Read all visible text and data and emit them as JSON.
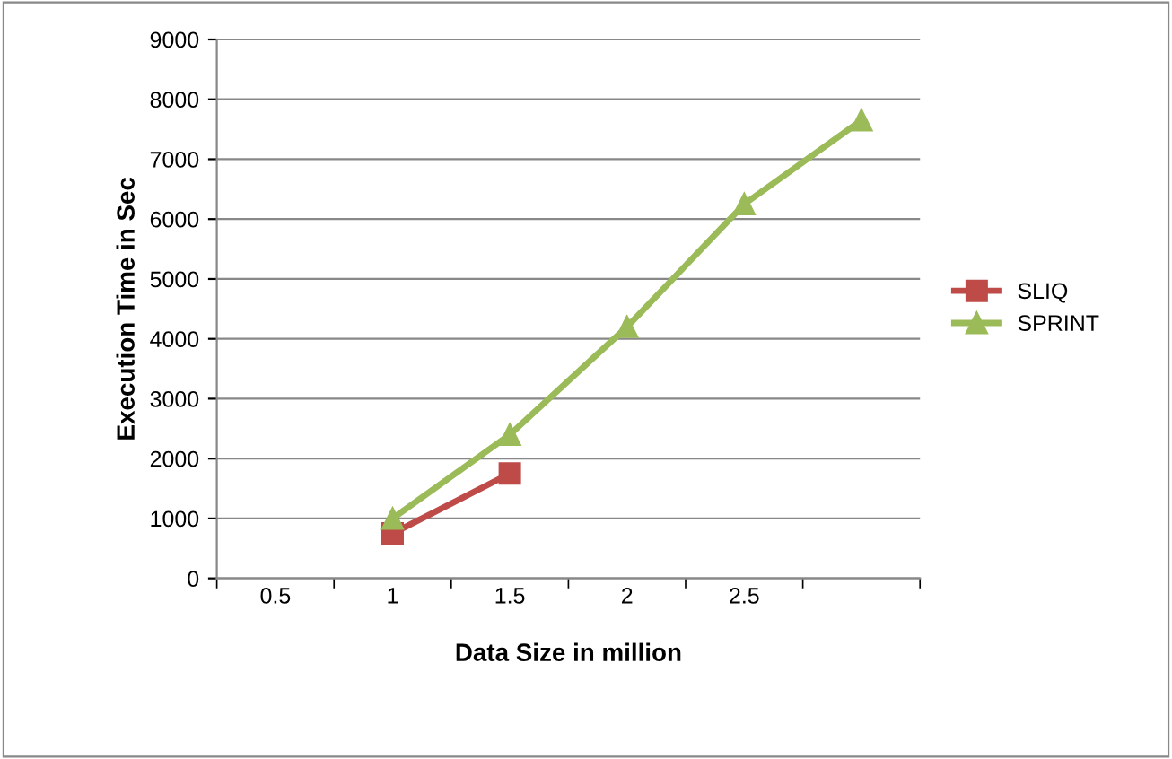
{
  "chart_data": {
    "type": "line",
    "xlabel": "Data Size in million",
    "ylabel": "Execution Time in Sec",
    "categories": [
      "0.5",
      "1",
      "1.5",
      "2",
      "2.5",
      null
    ],
    "series": [
      {
        "name": "SLIQ",
        "color": "#be4b48",
        "marker": "square",
        "values": [
          null,
          750,
          1750,
          null,
          null,
          null
        ]
      },
      {
        "name": "SPRINT",
        "color": "#9bbb59",
        "marker": "triangle",
        "values": [
          null,
          1000,
          2400,
          4200,
          6250,
          7650
        ]
      }
    ],
    "ylim": [
      0,
      9000
    ],
    "yticks": [
      0,
      1000,
      2000,
      3000,
      4000,
      5000,
      6000,
      7000,
      8000,
      9000
    ],
    "grid": "y",
    "legend": "right",
    "line_style": "solid"
  }
}
